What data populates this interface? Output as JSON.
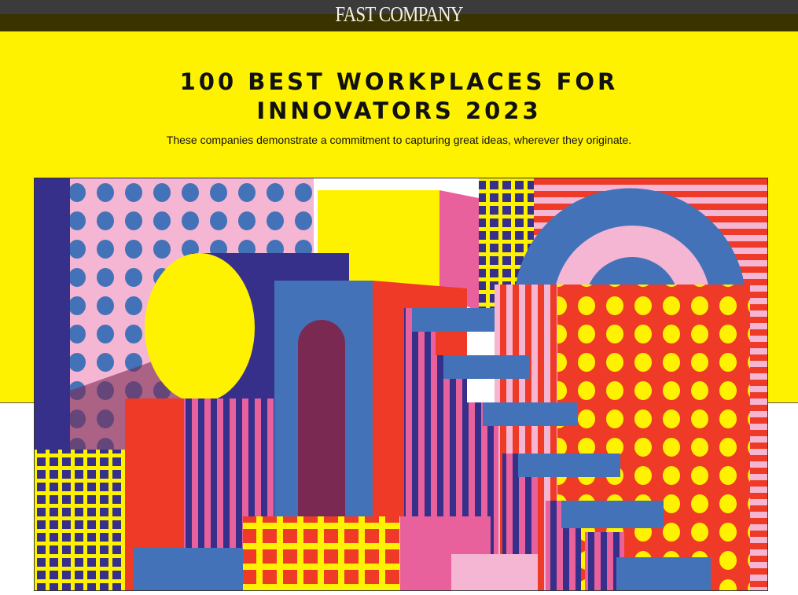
{
  "header": {
    "logo": "FAST COMPANY"
  },
  "hero": {
    "title_line1": "100 BEST WORKPLACES FOR",
    "title_line2": "INNOVATORS 2023",
    "subtitle": "These companies demonstrate a commitment to capturing great ideas, wherever they originate."
  },
  "colors": {
    "yellow": "#fff200",
    "blue": "#4472b8",
    "red": "#ee3a26",
    "pink": "#f4b6d2",
    "navy": "#37308a",
    "magenta": "#e8609c",
    "maroon": "#7a2a52"
  }
}
